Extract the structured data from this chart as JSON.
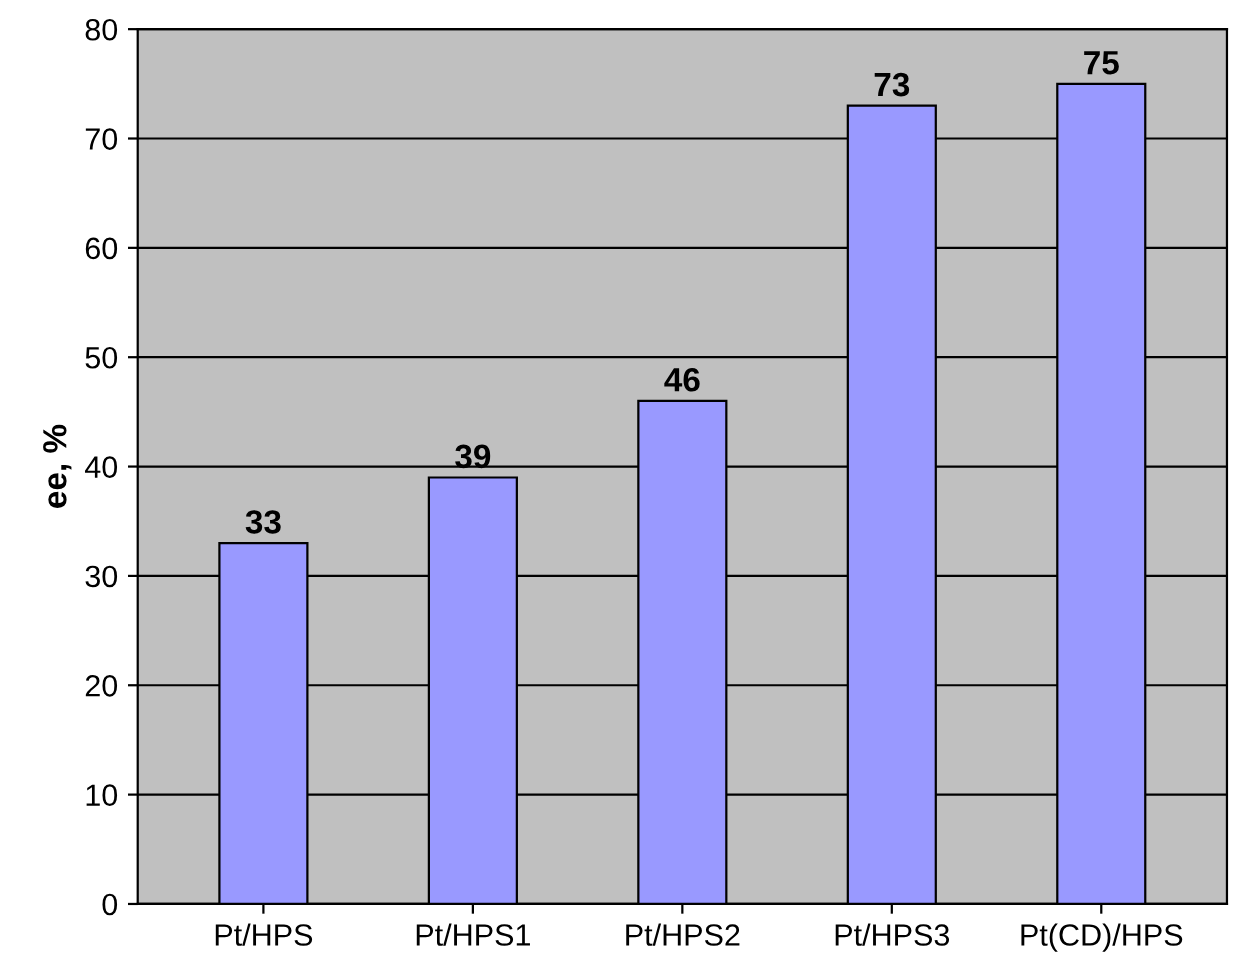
{
  "chart_data": {
    "type": "bar",
    "ylabel": "ee, %",
    "categories": [
      "Pt/HPS",
      "Pt/HPS1",
      "Pt/HPS2",
      "Pt/HPS3",
      "Pt(CD)/HPS"
    ],
    "values": [
      33,
      39,
      46,
      73,
      75
    ],
    "color": "#9999ff",
    "ylim": [
      0,
      80
    ],
    "yticks": [
      0,
      10,
      20,
      30,
      40,
      50,
      60,
      70,
      80
    ],
    "grid": "y",
    "data_labels": true
  }
}
